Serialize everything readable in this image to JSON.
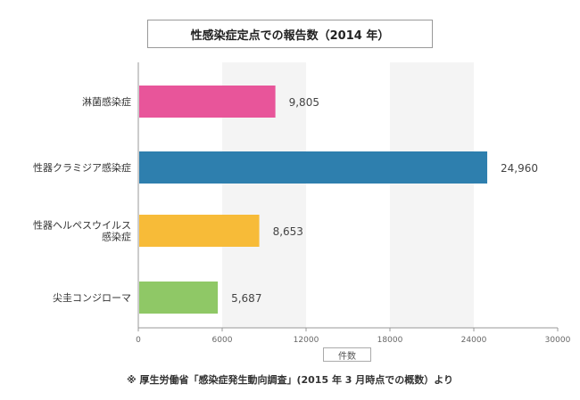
{
  "title": "性感染症定点での報告数（2014 年）",
  "unit_label": "件数",
  "source_note": "※ 厚生労働省「感染症発生動向調査」(2015 年 3 月時点での概数）より",
  "chart_data": {
    "type": "bar",
    "orientation": "horizontal",
    "title": "性感染症定点での報告数（2014 年）",
    "categories": [
      "淋菌感染症",
      "性器クラミジア感染症",
      "性器ヘルペスウイルス感染症",
      "尖圭コンジローマ"
    ],
    "category_lines": [
      [
        "淋菌感染症"
      ],
      [
        "性器クラミジア感染症"
      ],
      [
        "性器ヘルペスウイルス",
        "感染症"
      ],
      [
        "尖圭コンジローマ"
      ]
    ],
    "values": [
      9805,
      24960,
      8653,
      5687
    ],
    "value_labels": [
      "9,805",
      "24,960",
      "8,653",
      "5,687"
    ],
    "colors": [
      "#e8559a",
      "#2e7fae",
      "#f7bb38",
      "#8fc866"
    ],
    "xlabel": "件数",
    "ylabel": "",
    "xlim": [
      0,
      30000
    ],
    "xticks": [
      0,
      6000,
      12000,
      18000,
      24000,
      30000
    ],
    "xtick_labels": [
      "0",
      "6000",
      "12000",
      "18000",
      "24000",
      "30000"
    ],
    "grid": "alternating-bands",
    "band_color": "#f4f4f4"
  }
}
